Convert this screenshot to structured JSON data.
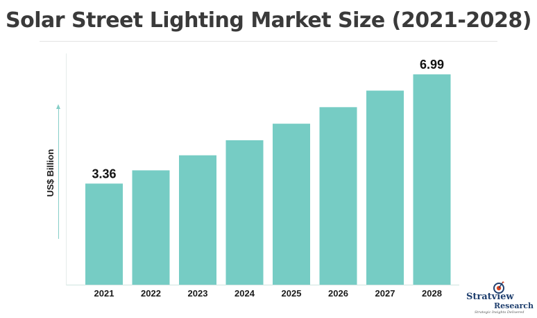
{
  "title": "Solar Street Lighting Market Size (2021-2028)",
  "logo": {
    "name_part1": "Stratview",
    "name_part2": "Research",
    "tagline": "Strategic Insights Delivered"
  },
  "colors": {
    "bar": "#76ccc4",
    "axis": "#cfe3e0",
    "arrow": "#85cec7",
    "title": "#3a3a3a",
    "logo": "#1f3f6e",
    "logo_accent": "#e0451f"
  },
  "chart_data": {
    "type": "bar",
    "title": "Solar Street Lighting Market Size (2021-2028)",
    "xlabel": "",
    "ylabel": "US$ Billion",
    "categories": [
      "2021",
      "2022",
      "2023",
      "2024",
      "2025",
      "2026",
      "2027",
      "2028"
    ],
    "values": [
      3.36,
      3.8,
      4.3,
      4.8,
      5.35,
      5.9,
      6.45,
      6.99
    ],
    "data_labels": [
      "3.36",
      "",
      "",
      "",
      "",
      "",
      "",
      "6.99"
    ],
    "ylim": [
      0,
      7.5
    ],
    "grid": false,
    "legend": "none"
  }
}
